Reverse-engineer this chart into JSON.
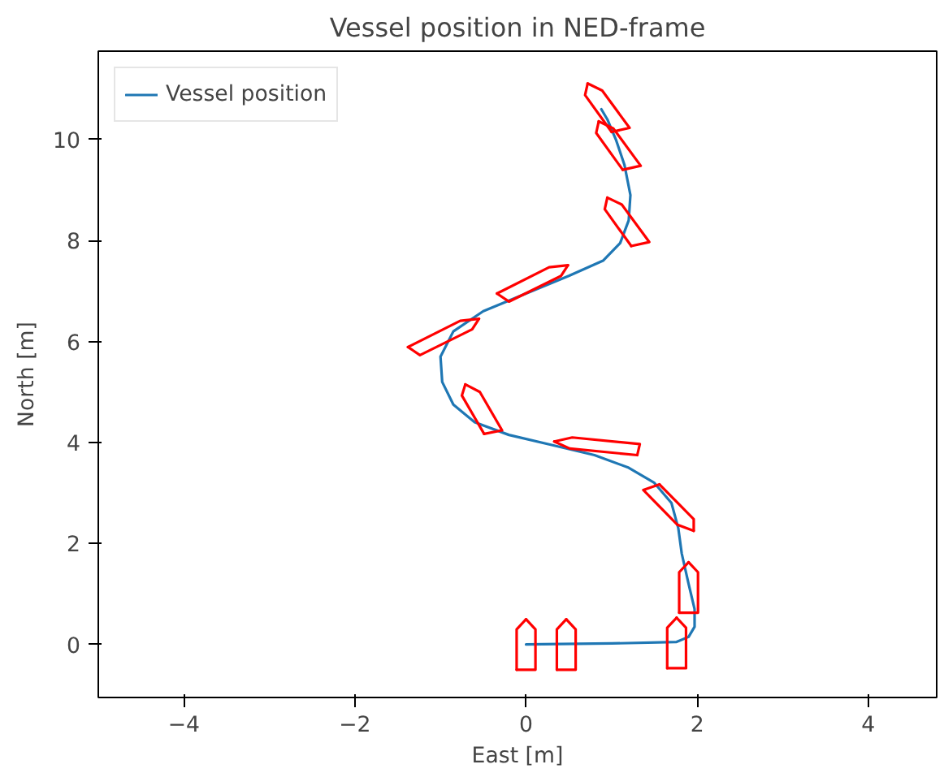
{
  "chart_data": {
    "type": "line",
    "title": "Vessel position in NED-frame",
    "xlabel": "East [m]",
    "ylabel": "North [m]",
    "xlim": [
      -5,
      4.8
    ],
    "ylim": [
      -1.05,
      11.75
    ],
    "xticks": [
      -4,
      -2,
      0,
      2,
      4
    ],
    "yticks": [
      0,
      2,
      4,
      6,
      8,
      10
    ],
    "grid": false,
    "legend": "top left",
    "series": [
      {
        "name": "Vessel position",
        "color": "#1f77b4",
        "x": [
          0,
          1.0,
          1.76,
          1.9,
          1.97,
          1.97,
          1.9,
          1.82,
          1.78,
          1.7,
          1.5,
          1.2,
          0.8,
          0.3,
          -0.2,
          -0.6,
          -0.85,
          -0.98,
          -1.0,
          -0.85,
          -0.5,
          0.0,
          0.5,
          0.9,
          1.1,
          1.2,
          1.22,
          1.15,
          1.05,
          0.95,
          0.88
        ],
        "values": [
          0,
          0.02,
          0.05,
          0.15,
          0.35,
          0.7,
          1.2,
          1.8,
          2.3,
          2.8,
          3.2,
          3.5,
          3.75,
          3.95,
          4.15,
          4.4,
          4.75,
          5.2,
          5.7,
          6.2,
          6.6,
          6.95,
          7.3,
          7.6,
          7.95,
          8.4,
          8.9,
          9.5,
          10.0,
          10.4,
          10.6
        ]
      },
      {
        "color": "#ff0000",
        "x": [
          0,
          0.11,
          0.11,
          -0.11
        ],
        "values": [
          0.5,
          0.3,
          -0.5,
          -0.5
        ]
      },
      {
        "color": "#ff0000",
        "x": [
          0,
          -0.11,
          -0.11
        ],
        "values": [
          0.5,
          0.3,
          -0.5
        ]
      },
      {
        "color": "#ff0000",
        "x": [
          0.47,
          0.58,
          0.58,
          0.36
        ],
        "values": [
          0.5,
          0.3,
          -0.5,
          -0.5
        ]
      },
      {
        "color": "#ff0000",
        "x": [
          0.47,
          0.36,
          0.36
        ],
        "values": [
          0.5,
          0.3,
          -0.5
        ]
      },
      {
        "color": "#ff0000",
        "x": [
          1.76,
          1.87,
          1.87,
          1.65
        ],
        "values": [
          0.53,
          0.33,
          -0.47,
          -0.47
        ]
      },
      {
        "color": "#ff0000",
        "x": [
          1.76,
          1.65,
          1.65
        ],
        "values": [
          0.53,
          0.33,
          -0.47
        ]
      },
      {
        "color": "#ff0000",
        "x": [
          1.9,
          2.01,
          2.01,
          1.79
        ],
        "values": [
          1.63,
          1.43,
          0.63,
          0.63
        ]
      },
      {
        "color": "#ff0000",
        "x": [
          1.9,
          1.79,
          1.79
        ],
        "values": [
          1.63,
          1.43,
          0.63
        ]
      },
      {
        "color": "#ff0000",
        "x": [
          1.96,
          1.77,
          1.37,
          1.56
        ],
        "values": [
          2.25,
          2.37,
          3.06,
          3.17
        ]
      },
      {
        "color": "#ff0000",
        "x": [
          1.96,
          1.96,
          1.56
        ],
        "values": [
          2.25,
          2.48,
          3.17
        ]
      },
      {
        "color": "#ff0000",
        "x": [
          0.33,
          0.54,
          1.33,
          1.3
        ],
        "values": [
          4.02,
          4.1,
          3.97,
          3.75
        ]
      },
      {
        "color": "#ff0000",
        "x": [
          0.33,
          0.51,
          1.3
        ],
        "values": [
          4.02,
          3.88,
          3.75
        ]
      },
      {
        "color": "#ff0000",
        "x": [
          -0.71,
          -0.54,
          -0.28,
          -0.49
        ],
        "values": [
          5.15,
          5.0,
          4.24,
          4.17
        ]
      },
      {
        "color": "#ff0000",
        "x": [
          -0.71,
          -0.75,
          -0.49
        ],
        "values": [
          5.15,
          4.93,
          4.17
        ]
      },
      {
        "color": "#ff0000",
        "x": [
          -0.55,
          -0.63,
          -1.24,
          -1.38
        ],
        "values": [
          6.45,
          6.24,
          5.73,
          5.89
        ]
      },
      {
        "color": "#ff0000",
        "x": [
          -0.55,
          -0.77,
          -1.38
        ],
        "values": [
          6.45,
          6.41,
          5.89
        ]
      },
      {
        "color": "#ff0000",
        "x": [
          0.49,
          0.41,
          -0.2,
          -0.34
        ],
        "values": [
          7.51,
          7.3,
          6.79,
          6.95
        ]
      },
      {
        "color": "#ff0000",
        "x": [
          0.49,
          0.27,
          -0.34
        ],
        "values": [
          7.51,
          7.47,
          6.95
        ]
      },
      {
        "color": "#ff0000",
        "x": [
          0.95,
          1.12,
          1.44,
          1.23
        ],
        "values": [
          8.85,
          8.71,
          7.97,
          7.89
        ]
      },
      {
        "color": "#ff0000",
        "x": [
          0.95,
          0.92,
          1.23
        ],
        "values": [
          8.85,
          8.62,
          7.89
        ]
      },
      {
        "color": "#ff0000",
        "x": [
          0.85,
          1.02,
          1.34,
          1.13
        ],
        "values": [
          10.36,
          10.22,
          9.48,
          9.4
        ]
      },
      {
        "color": "#ff0000",
        "x": [
          0.85,
          0.82,
          1.13
        ],
        "values": [
          10.36,
          10.13,
          9.4
        ]
      },
      {
        "color": "#ff0000",
        "x": [
          0.72,
          0.89,
          1.21,
          1.0
        ],
        "values": [
          11.11,
          10.97,
          10.23,
          10.15
        ]
      },
      {
        "color": "#ff0000",
        "x": [
          0.72,
          0.69,
          1.0
        ],
        "values": [
          11.11,
          10.88,
          10.15
        ]
      }
    ]
  }
}
